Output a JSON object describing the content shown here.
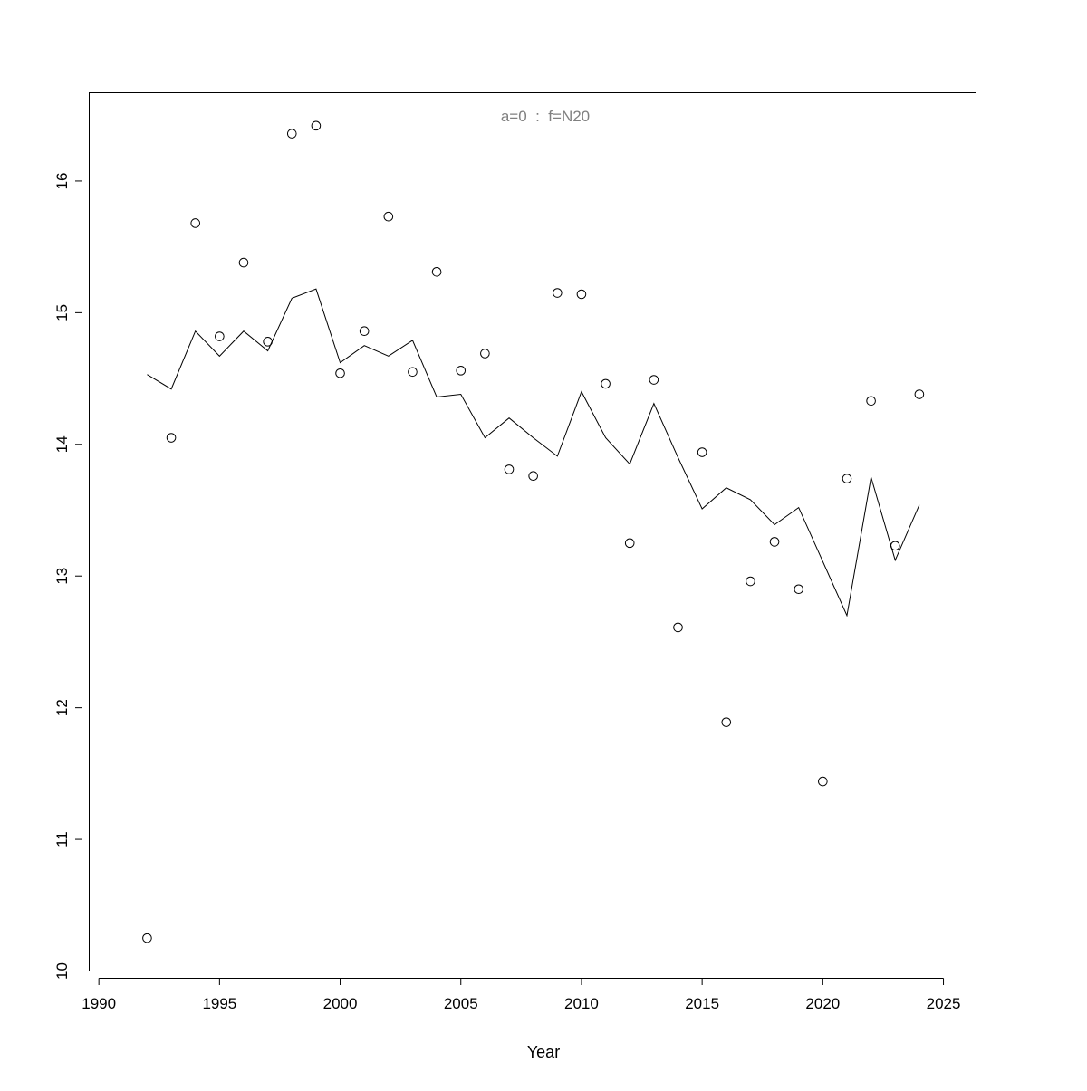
{
  "chart_data": {
    "type": "scatter",
    "title": "a=0  :  f=N20",
    "title_color": "#808080",
    "xlabel": "Year",
    "ylabel": "",
    "xlim": [
      1989.6,
      2026.35
    ],
    "ylim": [
      10.0,
      16.67
    ],
    "xticks": [
      1990,
      1995,
      2000,
      2005,
      2010,
      2015,
      2020,
      2025
    ],
    "yticks": [
      10,
      11,
      12,
      13,
      14,
      15,
      16
    ],
    "grid": false,
    "x": [
      1992,
      1993,
      1994,
      1995,
      1996,
      1997,
      1998,
      1999,
      2000,
      2001,
      2002,
      2003,
      2004,
      2005,
      2006,
      2007,
      2008,
      2009,
      2010,
      2011,
      2012,
      2013,
      2014,
      2015,
      2016,
      2017,
      2018,
      2019,
      2020,
      2021,
      2022,
      2023,
      2024
    ],
    "series": [
      {
        "type": "points",
        "values": [
          10.25,
          14.05,
          15.68,
          14.82,
          15.38,
          14.78,
          16.36,
          16.42,
          14.54,
          14.86,
          15.73,
          14.55,
          15.31,
          14.56,
          14.69,
          13.81,
          13.76,
          15.15,
          15.14,
          14.46,
          13.25,
          14.49,
          12.61,
          13.94,
          11.89,
          12.96,
          13.26,
          12.9,
          11.44,
          13.74,
          14.33,
          13.23,
          14.38
        ]
      },
      {
        "type": "line",
        "values": [
          14.53,
          14.42,
          14.86,
          14.67,
          14.86,
          14.71,
          15.11,
          15.18,
          14.62,
          14.75,
          14.67,
          14.79,
          14.36,
          14.38,
          14.05,
          14.2,
          14.05,
          13.91,
          14.4,
          14.05,
          13.85,
          14.31,
          13.9,
          13.51,
          13.67,
          13.58,
          13.39,
          13.52,
          13.11,
          12.7,
          13.75,
          13.12,
          13.54
        ]
      }
    ]
  }
}
